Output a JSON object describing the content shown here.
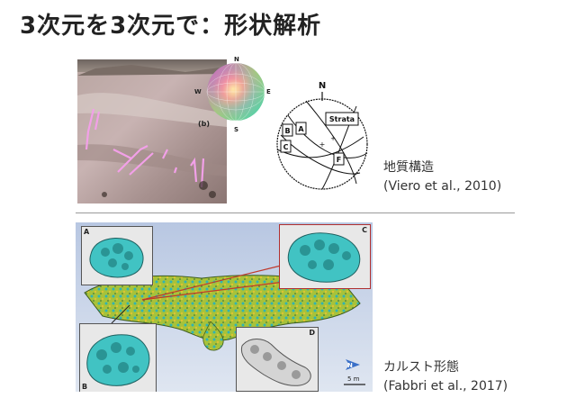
{
  "slide": {
    "title": "3次元を3次元で：形状解析"
  },
  "geologic_structure": {
    "caption_title": "地質構造",
    "citation": "(Viero et al., 2010)",
    "figure_label_b": "(b)",
    "compass": {
      "north": "N",
      "south": "S",
      "east": "E",
      "west": "W"
    },
    "stereonet": {
      "north": "N",
      "strata_label": "Strata",
      "labels": [
        "A",
        "B",
        "C",
        "F"
      ]
    }
  },
  "karst_morphology": {
    "caption_title": "カルスト形態",
    "citation": "(Fabbri et al., 2017)",
    "inset_labels": [
      "A",
      "B",
      "C",
      "D"
    ],
    "north_arrow": "N",
    "scale_bar": "5 m"
  },
  "colors": {
    "accent_red": "#c0392b",
    "cave_green": "#a7c23a",
    "cave_cyan": "#41c3c3"
  }
}
